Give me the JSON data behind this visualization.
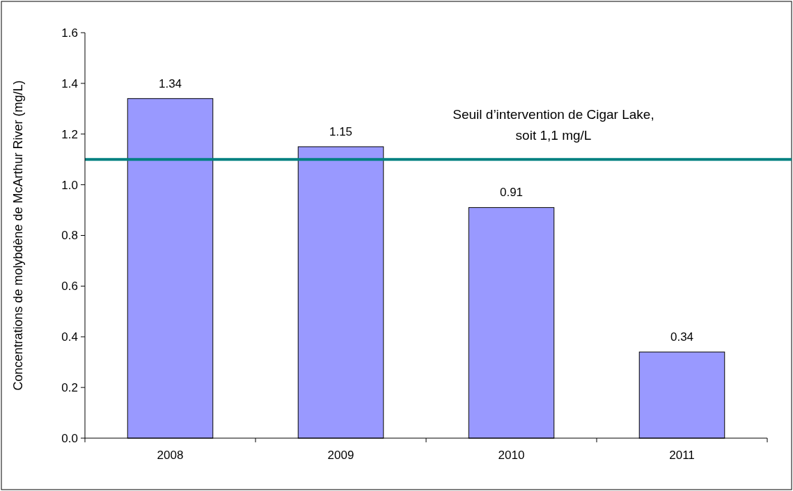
{
  "chart_data": {
    "type": "bar",
    "ylabel": "Concentrations de molybdène de McArthur River (mg/L)",
    "categories": [
      "2008",
      "2009",
      "2010",
      "2011"
    ],
    "values": [
      1.34,
      1.15,
      0.91,
      0.34
    ],
    "color": "#9999ff",
    "ylim": [
      0,
      1.6
    ],
    "yticks": [
      {
        "value": 0,
        "label": "0.0"
      },
      0.2,
      0.4,
      0.6,
      0.8,
      {
        "value": 1,
        "label": "1.0"
      },
      1.2,
      1.4,
      1.6
    ],
    "data_labels": true,
    "grid": false,
    "ref_lines": [
      {
        "axis": "y",
        "value": 1.1,
        "label": "Seuil d’intervention de Cigar Lake,\nsoit 1,1 mg/L",
        "color": "#008080"
      }
    ]
  }
}
